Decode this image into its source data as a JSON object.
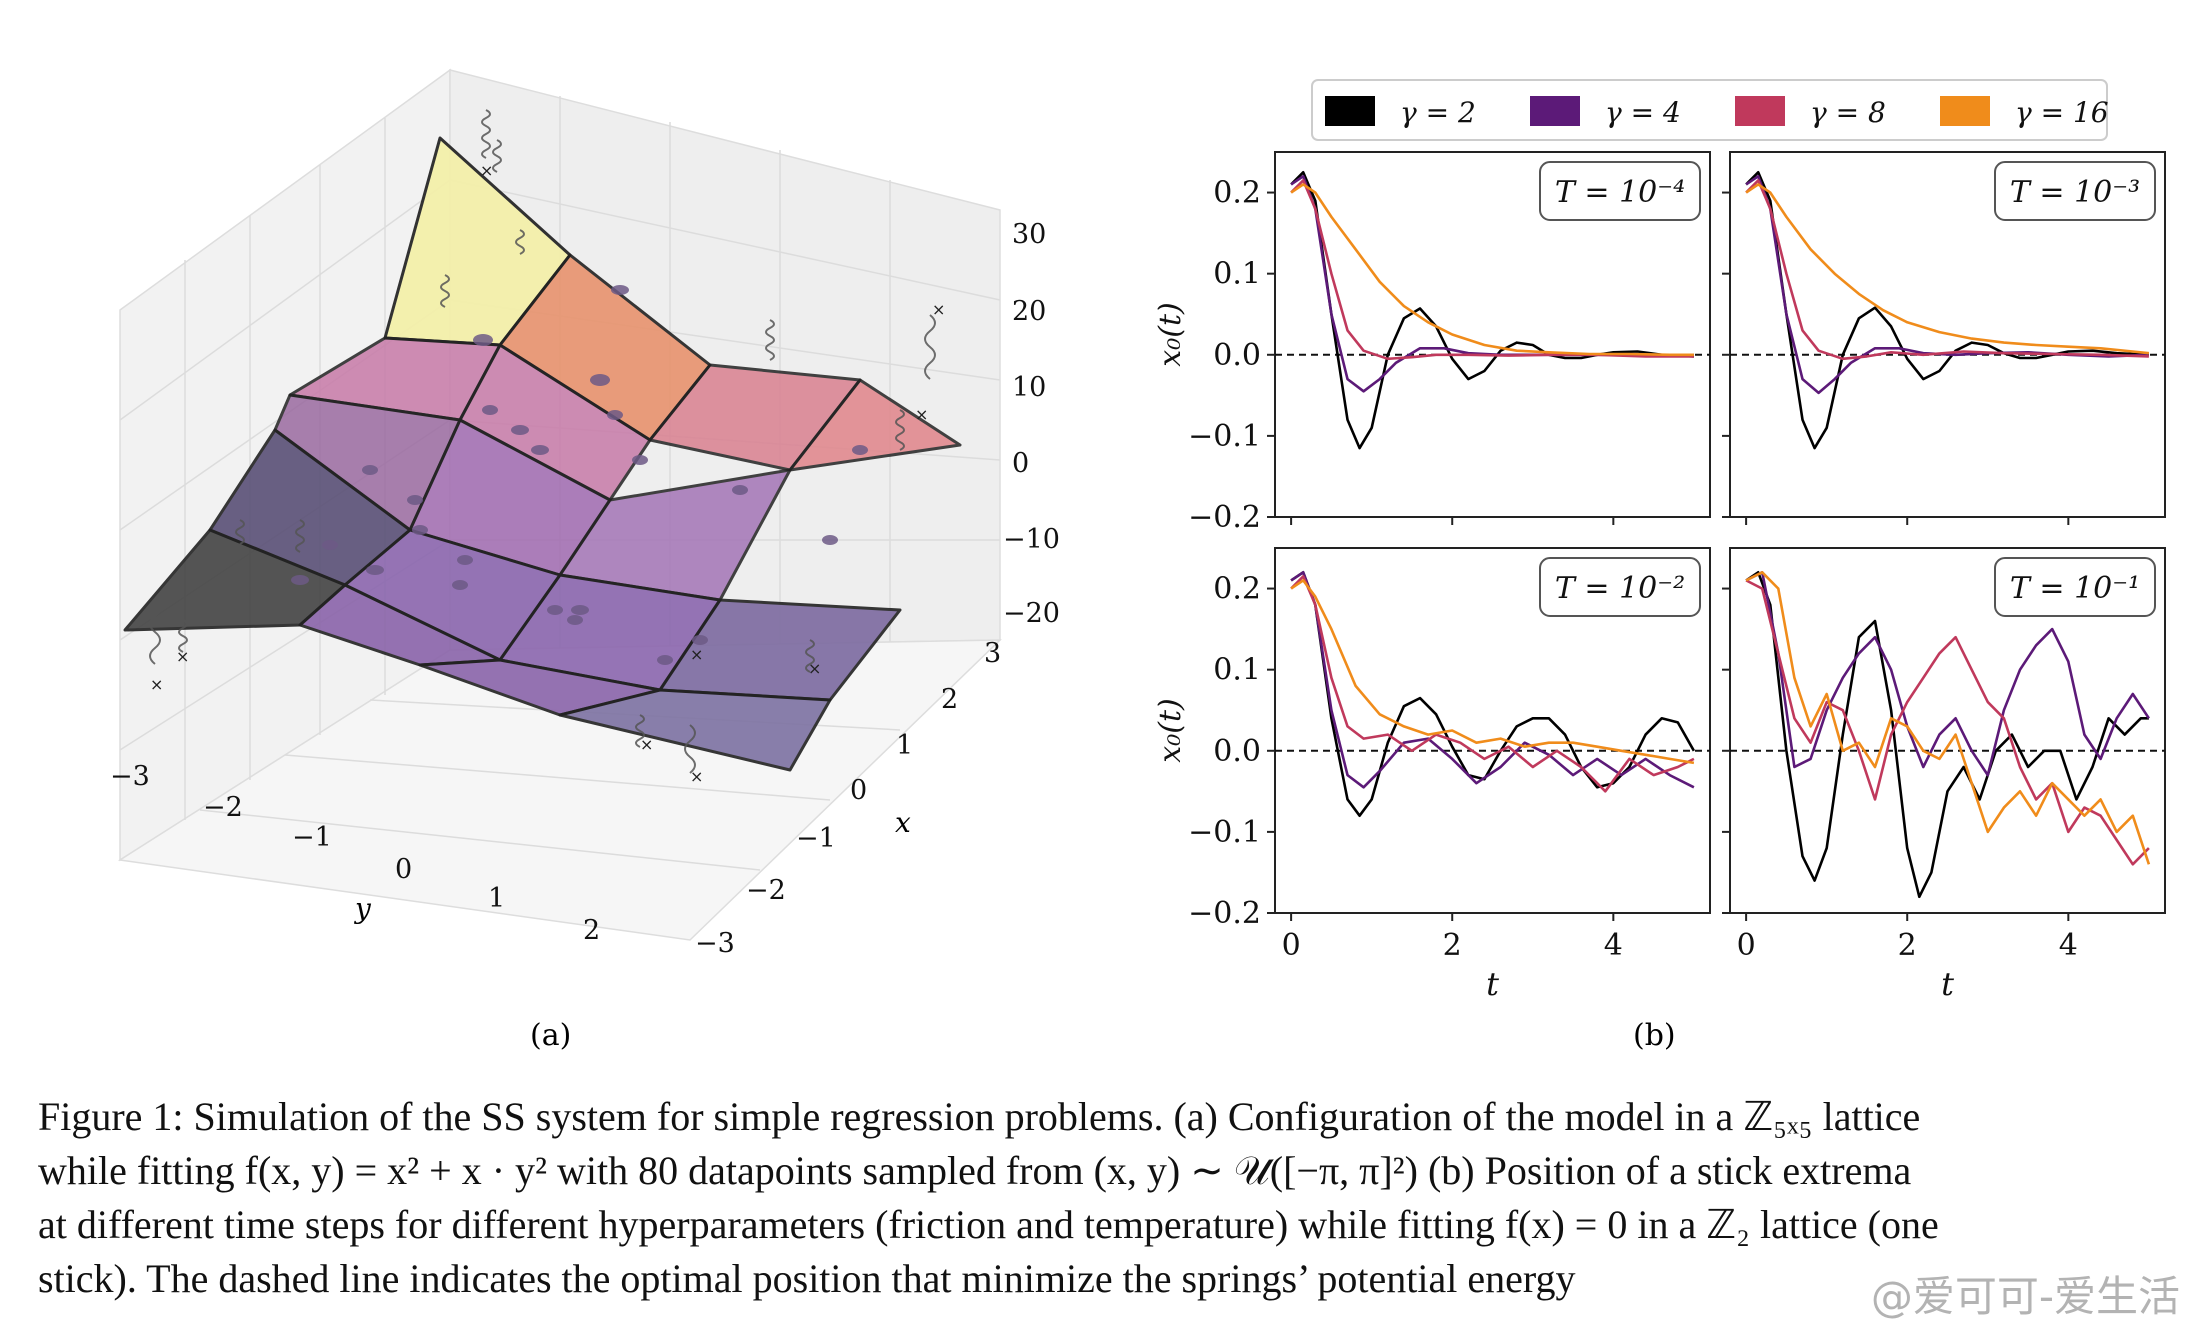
{
  "figure": {
    "panel_a_label": "(a)",
    "panel_b_label": "(b)",
    "caption": [
      "Figure 1: Simulation of the SS system for simple regression problems. (a) Configuration of the model in a ℤ₅ₓ₅ lattice",
      "while fitting f(x, y) = x² + x · y² with 80 datapoints sampled from (x, y) ∼ 𝒰([−π, π]²) (b) Position of a stick extrema",
      "at different time steps for different hyperparameters (friction and temperature) while fitting f(x) = 0 in a ℤ₂ lattice (one",
      "stick). The dashed line indicates the optimal position that minimize the springs’ potential energy"
    ],
    "watermark": "@爱可可-爱生活"
  },
  "panel_a": {
    "z_ticks": [
      "30",
      "20",
      "10",
      "0",
      "−10",
      "−20"
    ],
    "x_ticks": [
      "3",
      "2",
      "1",
      "0",
      "−1",
      "−2",
      "−3"
    ],
    "y_ticks": [
      "−3",
      "−2",
      "−1",
      "0",
      "1",
      "2"
    ],
    "x_label": "x",
    "y_label": "y"
  },
  "chart_data": [
    {
      "type": "line",
      "title": "T = 10⁻⁴",
      "ylabel": "x₀(t)",
      "xlabel": "",
      "xlim": [
        -0.2,
        5.2
      ],
      "ylim": [
        -0.2,
        0.25
      ],
      "legend": "top",
      "series": [
        {
          "name": "γ = 2",
          "color": "#000000",
          "x": [
            0,
            0.15,
            0.3,
            0.5,
            0.7,
            0.85,
            1.0,
            1.2,
            1.4,
            1.6,
            1.8,
            2.0,
            2.2,
            2.4,
            2.6,
            2.8,
            3.0,
            3.2,
            3.4,
            3.6,
            3.8,
            4.0,
            4.3,
            4.6,
            5.0
          ],
          "y": [
            0.21,
            0.225,
            0.19,
            0.05,
            -0.08,
            -0.115,
            -0.09,
            0.0,
            0.045,
            0.057,
            0.035,
            -0.005,
            -0.03,
            -0.02,
            0.005,
            0.015,
            0.012,
            0.0,
            -0.004,
            -0.004,
            0.0,
            0.003,
            0.004,
            0.0,
            -0.002
          ]
        },
        {
          "name": "γ = 4",
          "color": "#5c1a78",
          "x": [
            0,
            0.15,
            0.3,
            0.5,
            0.7,
            0.9,
            1.1,
            1.3,
            1.6,
            1.9,
            2.2,
            2.6,
            3.0,
            3.5,
            4.0,
            4.5,
            5.0
          ],
          "y": [
            0.21,
            0.22,
            0.18,
            0.05,
            -0.03,
            -0.045,
            -0.03,
            -0.01,
            0.008,
            0.008,
            0.002,
            0.0,
            0.0,
            0.0,
            0.0,
            0.0,
            0.0
          ]
        },
        {
          "name": "γ = 8",
          "color": "#c0395c",
          "x": [
            0,
            0.15,
            0.3,
            0.5,
            0.7,
            0.9,
            1.2,
            1.5,
            1.8,
            2.2,
            2.7,
            3.2,
            3.8,
            4.4,
            5.0
          ],
          "y": [
            0.2,
            0.215,
            0.18,
            0.1,
            0.03,
            0.005,
            -0.005,
            -0.003,
            0.0,
            0.0,
            -0.001,
            0.0,
            0.0,
            -0.002,
            -0.002
          ]
        },
        {
          "name": "γ = 16",
          "color": "#f08c1b",
          "x": [
            0,
            0.15,
            0.3,
            0.5,
            0.8,
            1.1,
            1.4,
            1.7,
            2.0,
            2.4,
            2.8,
            3.2,
            3.7,
            4.2,
            4.7,
            5.0
          ],
          "y": [
            0.2,
            0.21,
            0.2,
            0.17,
            0.13,
            0.09,
            0.06,
            0.04,
            0.025,
            0.012,
            0.005,
            0.003,
            0.001,
            0.001,
            0.0,
            0.0
          ]
        }
      ]
    },
    {
      "type": "line",
      "title": "T = 10⁻³",
      "ylabel": "",
      "xlabel": "",
      "xlim": [
        -0.2,
        5.2
      ],
      "ylim": [
        -0.2,
        0.25
      ],
      "series": [
        {
          "name": "γ = 2",
          "color": "#000000",
          "x": [
            0,
            0.15,
            0.3,
            0.5,
            0.7,
            0.85,
            1.0,
            1.2,
            1.4,
            1.6,
            1.8,
            2.0,
            2.2,
            2.4,
            2.6,
            2.8,
            3.0,
            3.2,
            3.4,
            3.6,
            3.8,
            4.0,
            4.3,
            4.6,
            5.0
          ],
          "y": [
            0.21,
            0.225,
            0.19,
            0.05,
            -0.08,
            -0.115,
            -0.09,
            0.0,
            0.045,
            0.058,
            0.035,
            -0.005,
            -0.03,
            -0.02,
            0.005,
            0.015,
            0.012,
            0.002,
            -0.004,
            -0.004,
            0.0,
            0.004,
            0.005,
            0.002,
            0.0
          ]
        },
        {
          "name": "γ = 4",
          "color": "#5c1a78",
          "x": [
            0,
            0.15,
            0.3,
            0.5,
            0.7,
            0.9,
            1.1,
            1.3,
            1.6,
            1.9,
            2.2,
            2.6,
            3.0,
            3.5,
            4.0,
            4.5,
            5.0
          ],
          "y": [
            0.21,
            0.22,
            0.18,
            0.05,
            -0.03,
            -0.047,
            -0.03,
            -0.01,
            0.008,
            0.008,
            0.002,
            0.0,
            0.002,
            0.003,
            0.0,
            -0.002,
            0.0
          ]
        },
        {
          "name": "γ = 8",
          "color": "#c0395c",
          "x": [
            0,
            0.15,
            0.3,
            0.5,
            0.7,
            0.9,
            1.2,
            1.5,
            1.8,
            2.2,
            2.7,
            3.2,
            3.8,
            4.4,
            5.0
          ],
          "y": [
            0.2,
            0.215,
            0.18,
            0.1,
            0.03,
            0.005,
            -0.005,
            -0.002,
            0.003,
            0.0,
            0.004,
            0.002,
            0.001,
            0.0,
            -0.002
          ]
        },
        {
          "name": "γ = 16",
          "color": "#f08c1b",
          "x": [
            0,
            0.15,
            0.3,
            0.5,
            0.8,
            1.1,
            1.4,
            1.7,
            2.0,
            2.4,
            2.8,
            3.2,
            3.6,
            4.0,
            4.4,
            4.8,
            5.0
          ],
          "y": [
            0.2,
            0.21,
            0.2,
            0.17,
            0.13,
            0.1,
            0.075,
            0.055,
            0.04,
            0.028,
            0.02,
            0.015,
            0.012,
            0.01,
            0.008,
            0.004,
            0.002
          ]
        }
      ]
    },
    {
      "type": "line",
      "title": "T = 10⁻²",
      "ylabel": "x₀(t)",
      "xlabel": "t",
      "xlim": [
        -0.2,
        5.2
      ],
      "ylim": [
        -0.2,
        0.25
      ],
      "series": [
        {
          "name": "γ = 2",
          "color": "#000000",
          "x": [
            0,
            0.15,
            0.3,
            0.5,
            0.7,
            0.85,
            1.0,
            1.2,
            1.4,
            1.6,
            1.8,
            2.0,
            2.2,
            2.4,
            2.6,
            2.8,
            3.0,
            3.2,
            3.4,
            3.6,
            3.8,
            4.0,
            4.2,
            4.4,
            4.6,
            4.8,
            5.0
          ],
          "y": [
            0.21,
            0.22,
            0.18,
            0.04,
            -0.06,
            -0.08,
            -0.06,
            0.01,
            0.055,
            0.065,
            0.045,
            0.005,
            -0.03,
            -0.035,
            0.0,
            0.03,
            0.04,
            0.04,
            0.02,
            -0.02,
            -0.045,
            -0.04,
            -0.02,
            0.02,
            0.04,
            0.035,
            0.0
          ]
        },
        {
          "name": "γ = 4",
          "color": "#5c1a78",
          "x": [
            0,
            0.15,
            0.3,
            0.5,
            0.7,
            0.9,
            1.1,
            1.4,
            1.7,
            2.0,
            2.3,
            2.6,
            2.9,
            3.2,
            3.5,
            3.8,
            4.1,
            4.4,
            4.7,
            5.0
          ],
          "y": [
            0.21,
            0.22,
            0.18,
            0.05,
            -0.03,
            -0.045,
            -0.025,
            0.01,
            0.015,
            -0.01,
            -0.04,
            -0.02,
            0.01,
            -0.005,
            -0.03,
            -0.01,
            -0.03,
            -0.01,
            -0.03,
            -0.045
          ]
        },
        {
          "name": "γ = 8",
          "color": "#c0395c",
          "x": [
            0,
            0.15,
            0.3,
            0.5,
            0.7,
            0.9,
            1.2,
            1.5,
            1.8,
            2.1,
            2.4,
            2.7,
            3.0,
            3.3,
            3.6,
            3.9,
            4.2,
            4.5,
            4.8,
            5.0
          ],
          "y": [
            0.2,
            0.215,
            0.18,
            0.09,
            0.03,
            0.015,
            0.02,
            0.0,
            0.02,
            0.01,
            -0.01,
            0.005,
            -0.02,
            0.0,
            -0.02,
            -0.05,
            -0.01,
            -0.03,
            -0.02,
            -0.01
          ]
        },
        {
          "name": "γ = 16",
          "color": "#f08c1b",
          "x": [
            0,
            0.15,
            0.3,
            0.5,
            0.8,
            1.1,
            1.4,
            1.7,
            2.0,
            2.3,
            2.6,
            2.9,
            3.2,
            3.5,
            3.8,
            4.1,
            4.4,
            4.7,
            5.0
          ],
          "y": [
            0.2,
            0.21,
            0.19,
            0.15,
            0.08,
            0.045,
            0.03,
            0.02,
            0.025,
            0.01,
            0.015,
            0.005,
            0.01,
            0.01,
            0.005,
            0.0,
            -0.005,
            -0.01,
            -0.015
          ]
        }
      ]
    },
    {
      "type": "line",
      "title": "T = 10⁻¹",
      "ylabel": "",
      "xlabel": "t",
      "xlim": [
        -0.2,
        5.2
      ],
      "ylim": [
        -0.2,
        0.25
      ],
      "series": [
        {
          "name": "γ = 2",
          "color": "#000000",
          "x": [
            0,
            0.15,
            0.3,
            0.5,
            0.7,
            0.85,
            1.0,
            1.2,
            1.4,
            1.6,
            1.8,
            2.0,
            2.15,
            2.3,
            2.5,
            2.7,
            2.9,
            3.1,
            3.3,
            3.5,
            3.7,
            3.9,
            4.1,
            4.3,
            4.5,
            4.7,
            4.9,
            5.0
          ],
          "y": [
            0.21,
            0.22,
            0.18,
            0.0,
            -0.13,
            -0.16,
            -0.12,
            0.02,
            0.14,
            0.16,
            0.05,
            -0.12,
            -0.18,
            -0.15,
            -0.05,
            -0.02,
            -0.06,
            0.0,
            0.02,
            -0.02,
            0.0,
            0.0,
            -0.06,
            -0.02,
            0.04,
            0.02,
            0.04,
            0.04
          ]
        },
        {
          "name": "γ = 4",
          "color": "#5c1a78",
          "x": [
            0,
            0.2,
            0.4,
            0.6,
            0.8,
            1.0,
            1.2,
            1.4,
            1.6,
            1.8,
            2.0,
            2.2,
            2.4,
            2.6,
            2.8,
            3.0,
            3.2,
            3.4,
            3.6,
            3.8,
            4.0,
            4.2,
            4.4,
            4.6,
            4.8,
            5.0
          ],
          "y": [
            0.21,
            0.22,
            0.12,
            -0.02,
            -0.01,
            0.05,
            0.09,
            0.12,
            0.14,
            0.1,
            0.03,
            -0.02,
            0.02,
            0.04,
            0.0,
            -0.03,
            0.05,
            0.1,
            0.13,
            0.15,
            0.11,
            0.02,
            -0.01,
            0.04,
            0.07,
            0.04
          ]
        },
        {
          "name": "γ = 8",
          "color": "#c0395c",
          "x": [
            0,
            0.2,
            0.4,
            0.6,
            0.8,
            1.0,
            1.2,
            1.4,
            1.6,
            1.8,
            2.0,
            2.2,
            2.4,
            2.6,
            2.8,
            3.0,
            3.2,
            3.4,
            3.6,
            3.8,
            4.0,
            4.2,
            4.4,
            4.6,
            4.8,
            5.0
          ],
          "y": [
            0.21,
            0.2,
            0.12,
            0.04,
            0.01,
            0.06,
            0.05,
            0.0,
            -0.06,
            0.02,
            0.06,
            0.09,
            0.12,
            0.14,
            0.1,
            0.06,
            0.04,
            -0.02,
            -0.06,
            -0.04,
            -0.1,
            -0.07,
            -0.08,
            -0.11,
            -0.14,
            -0.12
          ]
        },
        {
          "name": "γ = 16",
          "color": "#f08c1b",
          "x": [
            0,
            0.2,
            0.4,
            0.6,
            0.8,
            1.0,
            1.2,
            1.4,
            1.6,
            1.8,
            2.0,
            2.2,
            2.4,
            2.6,
            2.8,
            3.0,
            3.2,
            3.4,
            3.6,
            3.8,
            4.0,
            4.2,
            4.4,
            4.6,
            4.8,
            5.0
          ],
          "y": [
            0.21,
            0.22,
            0.2,
            0.09,
            0.03,
            0.07,
            0.0,
            0.01,
            -0.02,
            0.04,
            0.03,
            0.0,
            -0.01,
            0.02,
            -0.04,
            -0.1,
            -0.07,
            -0.05,
            -0.08,
            -0.04,
            -0.06,
            -0.08,
            -0.06,
            -0.1,
            -0.08,
            -0.14
          ]
        }
      ]
    }
  ],
  "axis_ticks": {
    "y": [
      "0.2",
      "0.1",
      "0.0",
      "−0.1",
      "−0.2"
    ],
    "x": [
      "0",
      "2",
      "4"
    ]
  }
}
